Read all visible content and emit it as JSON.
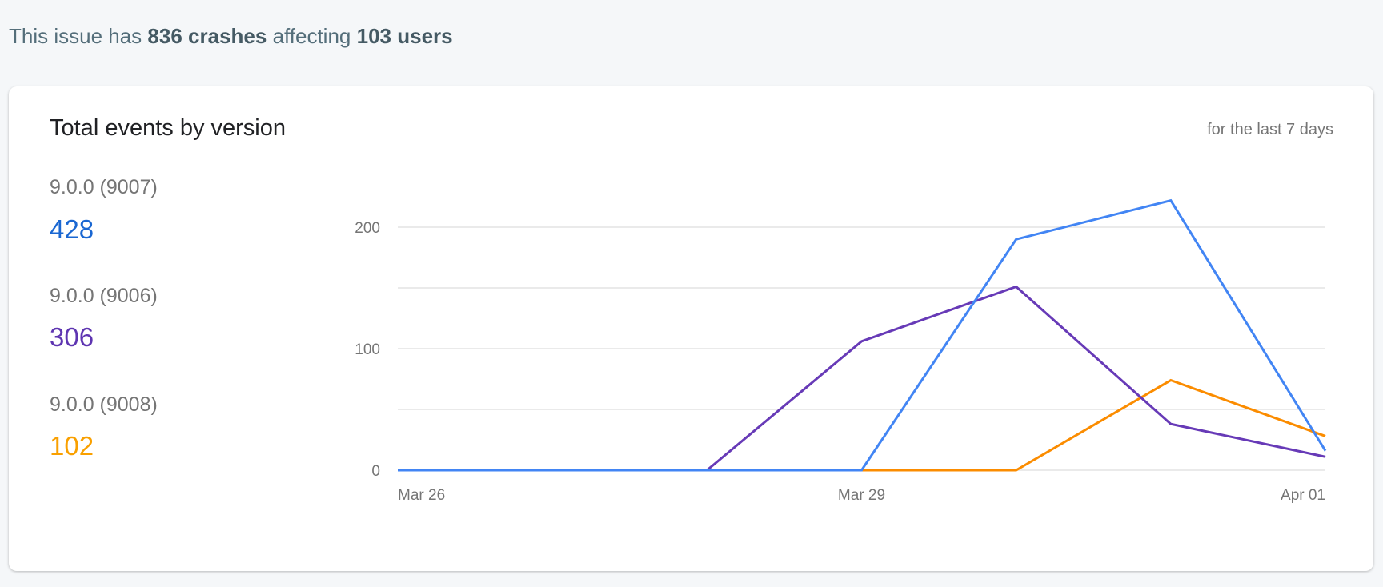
{
  "summary": {
    "prefix": "This issue has",
    "crashes": "836 crashes",
    "middle": "affecting",
    "users": "103 users"
  },
  "card": {
    "title": "Total events by version",
    "period": "for the last 7 days"
  },
  "legend": [
    {
      "label": "9.0.0 (9007)",
      "total": "428",
      "color": "#1a67d2"
    },
    {
      "label": "9.0.0 (9006)",
      "total": "306",
      "color": "#5e35b1"
    },
    {
      "label": "9.0.0 (9008)",
      "total": "102",
      "color": "#f9a000"
    }
  ],
  "chart_data": {
    "type": "line",
    "title": "Total events by version",
    "x": [
      "Mar 26",
      "Mar 27",
      "Mar 28",
      "Mar 29",
      "Mar 30",
      "Mar 31",
      "Apr 01"
    ],
    "xticks": [
      "Mar 26",
      "Mar 29",
      "Apr 01"
    ],
    "yticks": [
      0,
      100,
      200
    ],
    "ylim": [
      0,
      250
    ],
    "grid": true,
    "series": [
      {
        "name": "9.0.0 (9007)",
        "color": "#4285f4",
        "values": [
          0,
          0,
          0,
          0,
          190,
          222,
          16
        ]
      },
      {
        "name": "9.0.0 (9006)",
        "color": "#673ab7",
        "values": [
          0,
          0,
          0,
          106,
          151,
          38,
          11
        ]
      },
      {
        "name": "9.0.0 (9008)",
        "color": "#fb8c00",
        "values": [
          0,
          0,
          0,
          0,
          0,
          74,
          28
        ]
      }
    ]
  }
}
